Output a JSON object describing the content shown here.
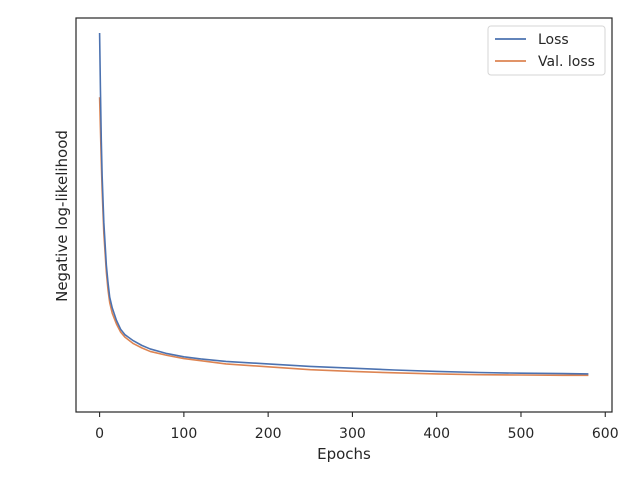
{
  "chart_data": {
    "type": "line",
    "title": "",
    "xlabel": "Epochs",
    "ylabel": "Negative log-likelihood",
    "xlim": [
      -28,
      608
    ],
    "ylim": [
      0,
      1
    ],
    "xticks": [
      0,
      100,
      200,
      300,
      400,
      500,
      600
    ],
    "yticks_shown": false,
    "grid": false,
    "legend_position": "upper right",
    "series": [
      {
        "name": "Loss",
        "color": "#4c72b0",
        "x": [
          0,
          1,
          2,
          3,
          5,
          8,
          10,
          12,
          15,
          20,
          25,
          30,
          40,
          50,
          60,
          80,
          100,
          120,
          150,
          200,
          250,
          300,
          350,
          400,
          450,
          500,
          550,
          580
        ],
        "y": [
          1.0,
          0.84,
          0.7,
          0.6,
          0.47,
          0.35,
          0.3,
          0.26,
          0.23,
          0.195,
          0.17,
          0.155,
          0.138,
          0.125,
          0.115,
          0.102,
          0.093,
          0.087,
          0.08,
          0.073,
          0.066,
          0.061,
          0.056,
          0.052,
          0.049,
          0.047,
          0.046,
          0.045
        ]
      },
      {
        "name": "Val. loss",
        "color": "#dd8452",
        "x": [
          0,
          1,
          2,
          3,
          5,
          8,
          10,
          12,
          15,
          20,
          25,
          30,
          40,
          50,
          60,
          80,
          100,
          120,
          150,
          200,
          250,
          300,
          350,
          400,
          450,
          500,
          550,
          580
        ],
        "y": [
          0.82,
          0.73,
          0.64,
          0.56,
          0.44,
          0.33,
          0.28,
          0.245,
          0.215,
          0.185,
          0.162,
          0.148,
          0.13,
          0.118,
          0.108,
          0.097,
          0.088,
          0.082,
          0.073,
          0.065,
          0.057,
          0.052,
          0.048,
          0.045,
          0.043,
          0.042,
          0.041,
          0.041
        ]
      }
    ]
  }
}
